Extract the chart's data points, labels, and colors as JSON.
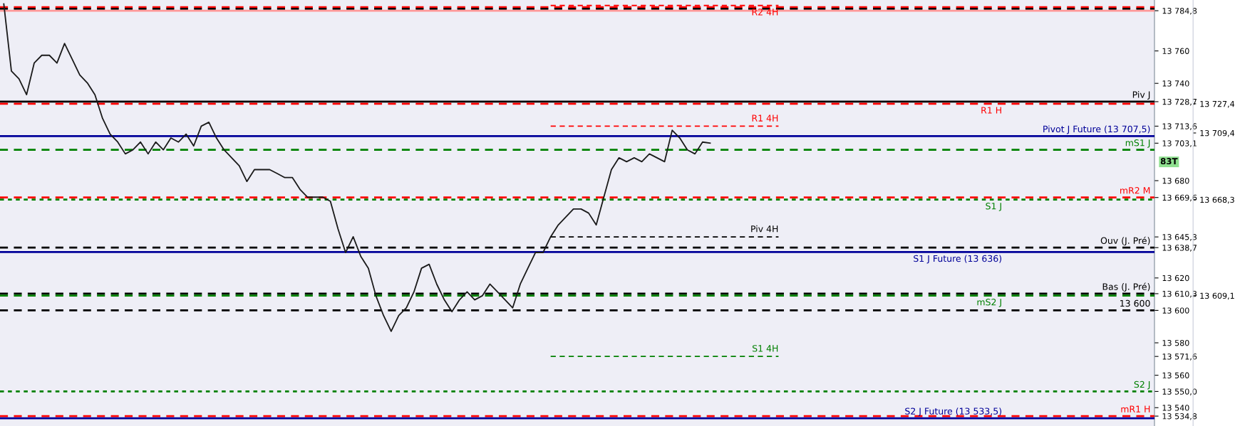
{
  "chart_data": {
    "type": "line",
    "categories": [
      null,
      null,
      null,
      null,
      null,
      null,
      null,
      null,
      null,
      null,
      null,
      null,
      null,
      null,
      null,
      null,
      null,
      null,
      null,
      null,
      null,
      null,
      null,
      null,
      null,
      null,
      null,
      null,
      null,
      null,
      null,
      null,
      null,
      null,
      null,
      null,
      null,
      null,
      null,
      null,
      null,
      null,
      null,
      null,
      null,
      null,
      null,
      null,
      null,
      null,
      null,
      null,
      null,
      null,
      null,
      null,
      null,
      null,
      null,
      null,
      null,
      null,
      null,
      null,
      null,
      null,
      null,
      null,
      null,
      null,
      null,
      null,
      null,
      null,
      null,
      null,
      null,
      null,
      null,
      null,
      null,
      null,
      null,
      null,
      null,
      null,
      null,
      null,
      null,
      null,
      null,
      null,
      null,
      null,
      null,
      null,
      null,
      null,
      null,
      null,
      null,
      null,
      null,
      null,
      null,
      null,
      null,
      null,
      null,
      null,
      null,
      null,
      null,
      null,
      null,
      null,
      null,
      null,
      null,
      null,
      null,
      null,
      null,
      null,
      null,
      null,
      null,
      null,
      null,
      null,
      null,
      null,
      null,
      null,
      null,
      null,
      null,
      null,
      null,
      null,
      null,
      null,
      null,
      null,
      null,
      null,
      null,
      null,
      null,
      null,
      null,
      null
    ],
    "series": [
      {
        "color": "#1a1a1a",
        "line_style": "solid",
        "values": [
          13789.0,
          13747.6,
          13742.8,
          13733.0,
          13752.5,
          13757.3,
          13757.3,
          13752.5,
          13764.6,
          13754.9,
          13745.2,
          13740.3,
          13733.0,
          13718.4,
          13708.7,
          13703.8,
          13696.5,
          13699.0,
          13703.8,
          13696.5,
          13703.8,
          13699.0,
          13706.3,
          13703.8,
          13708.7,
          13701.4,
          13713.6,
          13716.0,
          13706.3,
          13699.0,
          13694.1,
          13689.2,
          13679.5,
          13686.8,
          13686.8,
          13686.8,
          13684.4,
          13681.9,
          13681.9,
          13674.6,
          13669.8,
          13669.8,
          13669.8,
          13667.3,
          13650.3,
          13635.7,
          13645.4,
          13633.3,
          13626.0,
          13608.9,
          13596.8,
          13587.1,
          13596.8,
          13601.6,
          13611.4,
          13626.0,
          13628.4,
          13616.2,
          13606.5,
          13599.2,
          13606.5,
          13611.4,
          13606.5,
          13609.0,
          13616.2,
          13611.4,
          13606.5,
          13601.6,
          13616.2,
          13626.0,
          13635.7,
          13635.7,
          13645.4,
          13652.7,
          13657.6,
          13662.5,
          13662.5,
          13660.0,
          13652.7,
          13669.8,
          13686.8,
          13694.1,
          13691.7,
          13694.1,
          13691.7,
          13696.5,
          13694.1,
          13691.7,
          13711.1,
          13706.3,
          13699.0,
          13696.5,
          13703.8,
          13703.1,
          null,
          null,
          null,
          null,
          null,
          null,
          null,
          null,
          null,
          null,
          null,
          null,
          null,
          null,
          null,
          null,
          null,
          null,
          null,
          null,
          null,
          null,
          null,
          null,
          null,
          null,
          null,
          null,
          null,
          null,
          null,
          null,
          null,
          null,
          null,
          null,
          null,
          null,
          null,
          null,
          null,
          null,
          null,
          null,
          null,
          null,
          null,
          null,
          null,
          null,
          null,
          null,
          null,
          null,
          null,
          null,
          null,
          null
        ]
      },
      {
        "name": "R2 4H",
        "color": "#ff0000",
        "line_style": "dashed",
        "values": [
          null,
          null,
          null,
          null,
          null,
          null,
          null,
          null,
          null,
          null,
          null,
          null,
          null,
          null,
          null,
          null,
          null,
          null,
          null,
          null,
          null,
          null,
          null,
          null,
          null,
          null,
          null,
          null,
          null,
          null,
          null,
          null,
          null,
          null,
          null,
          null,
          null,
          null,
          null,
          null,
          null,
          null,
          null,
          null,
          null,
          null,
          null,
          null,
          null,
          null,
          null,
          null,
          null,
          null,
          null,
          null,
          null,
          null,
          null,
          null,
          null,
          null,
          null,
          null,
          null,
          null,
          null,
          null,
          null,
          null,
          null,
          null,
          13788,
          13788,
          13788,
          13788,
          13788,
          13788,
          13788,
          13788,
          13788,
          13788,
          13788,
          13788,
          13788,
          13788,
          13788,
          13788,
          13788,
          13788,
          13788,
          13788,
          13788,
          13788,
          13788,
          13788,
          13788,
          13788,
          13788,
          13788,
          13788,
          13788,
          13788,
          null,
          null,
          null,
          null,
          null,
          null,
          null,
          null,
          null,
          null,
          null,
          null,
          null,
          null,
          null,
          null,
          null,
          null,
          null,
          null,
          null,
          null,
          null,
          null,
          null,
          null,
          null,
          null,
          null,
          null,
          null,
          null,
          null,
          null,
          null,
          null,
          null,
          null,
          null,
          null,
          null,
          null,
          null,
          null,
          null,
          null,
          null,
          null,
          null
        ]
      },
      {
        "name": "R1 4H",
        "color": "#ff0000",
        "line_style": "dashed",
        "values": [
          null,
          null,
          null,
          null,
          null,
          null,
          null,
          null,
          null,
          null,
          null,
          null,
          null,
          null,
          null,
          null,
          null,
          null,
          null,
          null,
          null,
          null,
          null,
          null,
          null,
          null,
          null,
          null,
          null,
          null,
          null,
          null,
          null,
          null,
          null,
          null,
          null,
          null,
          null,
          null,
          null,
          null,
          null,
          null,
          null,
          null,
          null,
          null,
          null,
          null,
          null,
          null,
          null,
          null,
          null,
          null,
          null,
          null,
          null,
          null,
          null,
          null,
          null,
          null,
          null,
          null,
          null,
          null,
          null,
          null,
          null,
          null,
          13713.6,
          13713.6,
          13713.6,
          13713.6,
          13713.6,
          13713.6,
          13713.6,
          13713.6,
          13713.6,
          13713.6,
          13713.6,
          13713.6,
          13713.6,
          13713.6,
          13713.6,
          13713.6,
          13713.6,
          13713.6,
          13713.6,
          13713.6,
          13713.6,
          13713.6,
          13713.6,
          13713.6,
          13713.6,
          13713.6,
          13713.6,
          13713.6,
          13713.6,
          13713.6,
          13713.6,
          null,
          null,
          null,
          null,
          null,
          null,
          null,
          null,
          null,
          null,
          null,
          null,
          null,
          null,
          null,
          null,
          null,
          null,
          null,
          null,
          null,
          null,
          null,
          null,
          null,
          null,
          null,
          null,
          null,
          null,
          null,
          null,
          null,
          null,
          null,
          null,
          null,
          null,
          null,
          null,
          null,
          null,
          null,
          null,
          null,
          null,
          null,
          null,
          null
        ]
      },
      {
        "name": "Piv 4H",
        "color": "#000000",
        "line_style": "dashed",
        "values": [
          null,
          null,
          null,
          null,
          null,
          null,
          null,
          null,
          null,
          null,
          null,
          null,
          null,
          null,
          null,
          null,
          null,
          null,
          null,
          null,
          null,
          null,
          null,
          null,
          null,
          null,
          null,
          null,
          null,
          null,
          null,
          null,
          null,
          null,
          null,
          null,
          null,
          null,
          null,
          null,
          null,
          null,
          null,
          null,
          null,
          null,
          null,
          null,
          null,
          null,
          null,
          null,
          null,
          null,
          null,
          null,
          null,
          null,
          null,
          null,
          null,
          null,
          null,
          null,
          null,
          null,
          null,
          null,
          null,
          null,
          null,
          null,
          13645.3,
          13645.3,
          13645.3,
          13645.3,
          13645.3,
          13645.3,
          13645.3,
          13645.3,
          13645.3,
          13645.3,
          13645.3,
          13645.3,
          13645.3,
          13645.3,
          13645.3,
          13645.3,
          13645.3,
          13645.3,
          13645.3,
          13645.3,
          13645.3,
          13645.3,
          13645.3,
          13645.3,
          13645.3,
          13645.3,
          13645.3,
          13645.3,
          13645.3,
          13645.3,
          13645.3,
          null,
          null,
          null,
          null,
          null,
          null,
          null,
          null,
          null,
          null,
          null,
          null,
          null,
          null,
          null,
          null,
          null,
          null,
          null,
          null,
          null,
          null,
          null,
          null,
          null,
          null,
          null,
          null,
          null,
          null,
          null,
          null,
          null,
          null,
          null,
          null,
          null,
          null,
          null,
          null,
          null,
          null,
          null,
          null,
          null,
          null,
          null,
          null,
          null
        ]
      },
      {
        "name": "S1 4H",
        "color": "#008000",
        "line_style": "dashed",
        "values": [
          null,
          null,
          null,
          null,
          null,
          null,
          null,
          null,
          null,
          null,
          null,
          null,
          null,
          null,
          null,
          null,
          null,
          null,
          null,
          null,
          null,
          null,
          null,
          null,
          null,
          null,
          null,
          null,
          null,
          null,
          null,
          null,
          null,
          null,
          null,
          null,
          null,
          null,
          null,
          null,
          null,
          null,
          null,
          null,
          null,
          null,
          null,
          null,
          null,
          null,
          null,
          null,
          null,
          null,
          null,
          null,
          null,
          null,
          null,
          null,
          null,
          null,
          null,
          null,
          null,
          null,
          null,
          null,
          null,
          null,
          null,
          null,
          13571.6,
          13571.6,
          13571.6,
          13571.6,
          13571.6,
          13571.6,
          13571.6,
          13571.6,
          13571.6,
          13571.6,
          13571.6,
          13571.6,
          13571.6,
          13571.6,
          13571.6,
          13571.6,
          13571.6,
          13571.6,
          13571.6,
          13571.6,
          13571.6,
          13571.6,
          13571.6,
          13571.6,
          13571.6,
          13571.6,
          13571.6,
          13571.6,
          13571.6,
          13571.6,
          13571.6,
          null,
          null,
          null,
          null,
          null,
          null,
          null,
          null,
          null,
          null,
          null,
          null,
          null,
          null,
          null,
          null,
          null,
          null,
          null,
          null,
          null,
          null,
          null,
          null,
          null,
          null,
          null,
          null,
          null,
          null,
          null,
          null,
          null,
          null,
          null,
          null,
          null,
          null,
          null,
          null,
          null,
          null,
          null,
          null,
          null,
          null,
          null,
          null,
          null
        ]
      }
    ],
    "ylim": [
      13528.7,
      13791.4
    ],
    "yticks": [
      {
        "value": 13784.8,
        "label": "13 784,8"
      },
      {
        "value": 13760,
        "label": "13 760"
      },
      {
        "value": 13740,
        "label": "13 740"
      },
      {
        "value": 13728.7,
        "label": "13 728,7"
      },
      {
        "value": 13713.6,
        "label": "13 713,6"
      },
      {
        "value": 13703.1,
        "label": "13 703,1"
      },
      {
        "value": 13680,
        "label": "13 680"
      },
      {
        "value": 13669.6,
        "label": "13 669,6"
      },
      {
        "value": 13645.3,
        "label": "13 645,3"
      },
      {
        "value": 13638.7,
        "label": "13 638,7"
      },
      {
        "value": 13620,
        "label": "13 620"
      },
      {
        "value": 13610.3,
        "label": "13 610,3"
      },
      {
        "value": 13600,
        "label": "13 600"
      },
      {
        "value": 13580,
        "label": "13 580"
      },
      {
        "value": 13571.6,
        "label": "13 571,6"
      },
      {
        "value": 13560,
        "label": "13 560"
      },
      {
        "value": 13550.0,
        "label": "13 550,0"
      },
      {
        "value": 13540,
        "label": "13 540"
      },
      {
        "value": 13534.8,
        "label": "13 534,8"
      }
    ],
    "y2lim": [
      13528.7,
      13791.4
    ],
    "y2ticks": [
      {
        "value": 13727.4,
        "label": "13 727,4"
      },
      {
        "value": 13709.4,
        "label": "13 709,4"
      },
      {
        "value": 13668.3,
        "label": "13 668,3"
      },
      {
        "value": 13609.1,
        "label": "13 609,1"
      }
    ],
    "tick_labels": "y",
    "ref_lines": [
      {
        "axis": "y",
        "value": 13787,
        "label": null,
        "color": "#ff0000",
        "line_style": "dashed"
      },
      {
        "axis": "y",
        "value": 13786,
        "label": null,
        "color": "#000000",
        "line_style": "dashed"
      },
      {
        "axis": "y",
        "value": 13784.8,
        "label": null,
        "color": "#ff9999",
        "line_style": "solid"
      },
      {
        "axis": "y",
        "value": 13728.7,
        "label": "Piv J",
        "color": "#000000",
        "line_style": "solid"
      },
      {
        "axis": "y",
        "value": 13727.4,
        "label": "R1 H",
        "color": "#ff0000",
        "line_style": "dashed"
      },
      {
        "axis": "y",
        "value": 13707.5,
        "label": "Pivot J Future (13 707,5)",
        "color": "#000099",
        "line_style": "solid"
      },
      {
        "axis": "y",
        "value": 13699,
        "label": "mS1 J",
        "color": "#008000",
        "line_style": "dashed"
      },
      {
        "axis": "y",
        "value": 13669.6,
        "label": "mR2 M",
        "color": "#ff0000",
        "line_style": "dashed"
      },
      {
        "axis": "y",
        "value": 13668.3,
        "label": "S1 J",
        "color": "#008000",
        "line_style": "dotted"
      },
      {
        "axis": "y",
        "value": 13638.7,
        "label": "Ouv (J. Pré)",
        "color": "#000000",
        "line_style": "dashed"
      },
      {
        "axis": "y",
        "value": 13636,
        "label": "S1 J Future (13 636)",
        "color": "#000099",
        "line_style": "solid"
      },
      {
        "axis": "y",
        "value": 13610.3,
        "label": "Bas (J. Pré)",
        "color": "#000000",
        "line_style": "dashed"
      },
      {
        "axis": "y",
        "value": 13609.1,
        "label": "mS2 J",
        "color": "#008000",
        "line_style": "dashed"
      },
      {
        "axis": "y",
        "value": 13600,
        "label": "13 600",
        "color": "#000000",
        "line_style": "dashed"
      },
      {
        "axis": "y",
        "value": 13550,
        "label": "S2 J",
        "color": "#008000",
        "line_style": "dotted"
      },
      {
        "axis": "y",
        "value": 13534.8,
        "label": "mR1 H",
        "color": "#ff0000",
        "line_style": "dashed"
      },
      {
        "axis": "y",
        "value": 13533.5,
        "label": "S2 J Future (13 533,5)",
        "color": "#000099",
        "line_style": "solid"
      }
    ],
    "annotations": [
      "83T"
    ]
  }
}
